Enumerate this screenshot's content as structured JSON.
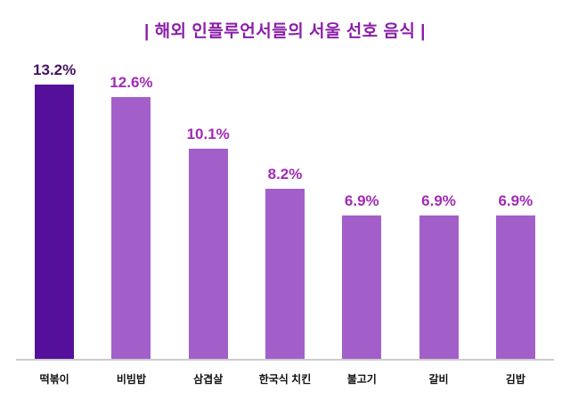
{
  "chart_data": {
    "type": "bar",
    "title": "| 해외 인플루언서들의 서울 선호 음식 |",
    "categories": [
      "떡볶이",
      "비빔밥",
      "삼겹살",
      "한국식 치킨",
      "불고기",
      "갈비",
      "김밥"
    ],
    "values": [
      13.2,
      12.6,
      10.1,
      8.2,
      6.9,
      6.9,
      6.9
    ],
    "value_labels": [
      "13.2%",
      "12.6%",
      "10.1%",
      "8.2%",
      "6.9%",
      "6.9%",
      "6.9%"
    ],
    "ylim": [
      0,
      13.2
    ],
    "grid": false,
    "legend": "none",
    "highlight_index": 0,
    "colors": {
      "title": "#8A1FA8",
      "highlight_bar": "#55109B",
      "bar": "#A35FC9",
      "highlight_value_label": "#44105F",
      "value_label": "#A12BB4",
      "axis_line": "#cccccc",
      "category_label": "#111111"
    }
  }
}
